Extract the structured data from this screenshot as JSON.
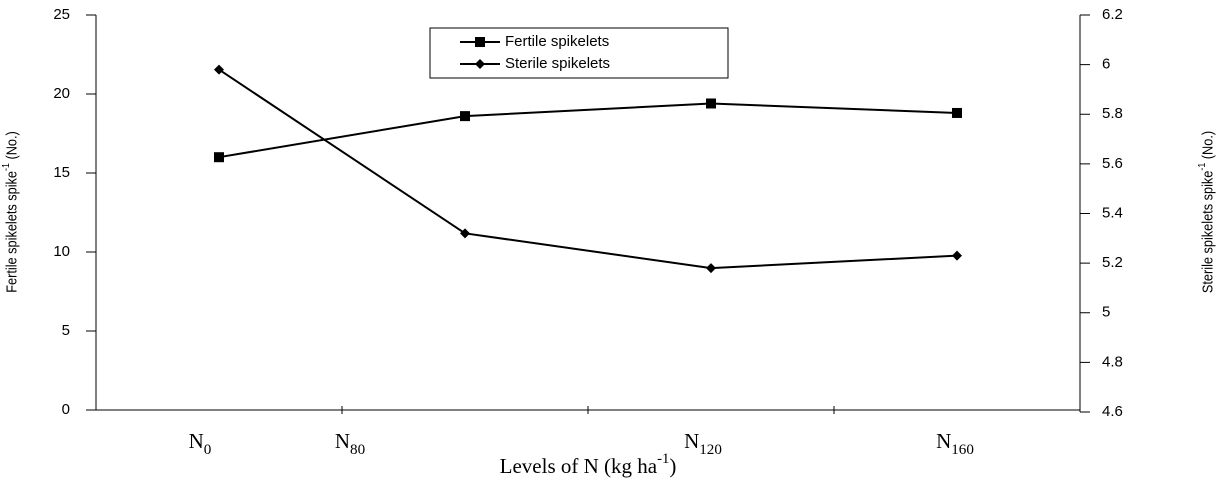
{
  "chart_data": {
    "type": "line",
    "categories": [
      "N0",
      "N80",
      "N120",
      "N160"
    ],
    "series": [
      {
        "name": "Fertile spikelets",
        "color": "#000000",
        "marker": "square",
        "values": [
          16,
          18.6,
          19.4,
          18.8
        ]
      },
      {
        "name": "Sterile spikelets",
        "color": "#000000",
        "marker": "diamond",
        "axis": "y2",
        "values": [
          5.98,
          5.32,
          5.18,
          5.23
        ]
      }
    ],
    "ylabel": [
      "Fertile spikelets spike",
      "-1",
      " (No.)"
    ],
    "y2label": [
      "Sterile spikelets spike",
      "-1",
      " (No.)"
    ],
    "xlabel": [
      "Levels of N (kg ha",
      "-1",
      ")"
    ],
    "ylim": [
      0,
      25
    ],
    "yticks": [
      0,
      5,
      10,
      15,
      20,
      25
    ],
    "y2lim": [
      4.6,
      6.2
    ],
    "y2ticks": [
      4.6,
      4.8,
      5,
      5.2,
      5.4,
      5.6,
      5.8,
      6,
      6.2
    ],
    "legend": "top"
  }
}
